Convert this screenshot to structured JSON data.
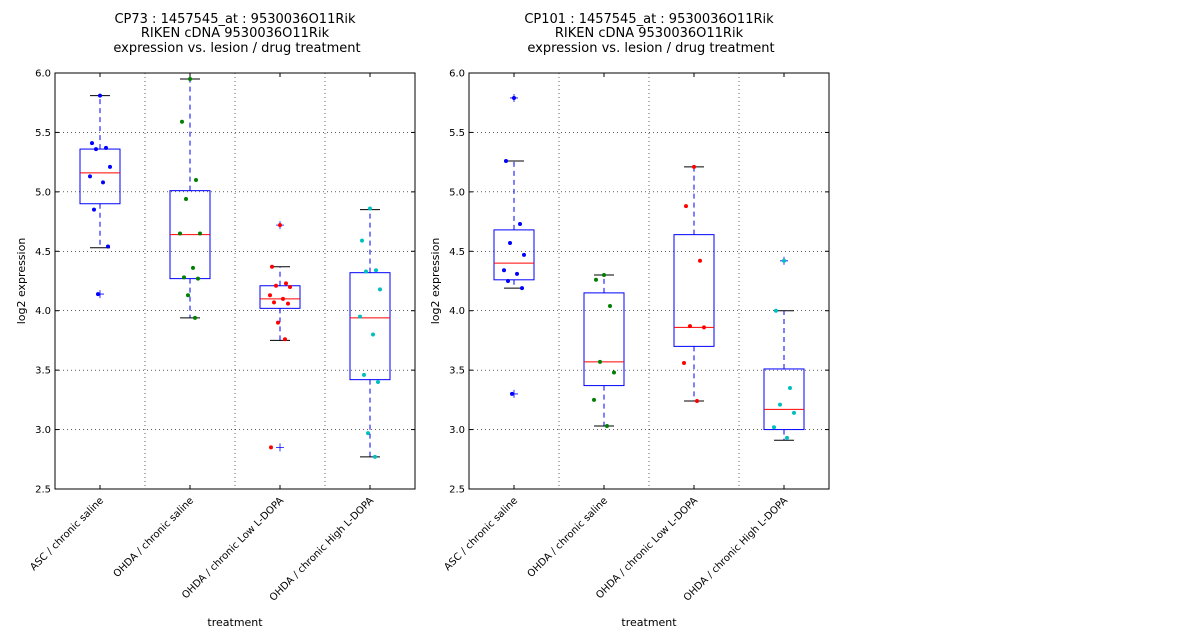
{
  "chart_data": [
    {
      "type": "box",
      "title_lines": [
        "CP73 : 1457545_at : 9530036O11Rik",
        "RIKEN cDNA 9530036O11Rik",
        "expression vs. lesion / drug treatment"
      ],
      "xlabel": "treatment",
      "ylabel": "log2 expression",
      "ylim": [
        2.5,
        6.0
      ],
      "yticks": [
        "2.5",
        "3.0",
        "3.5",
        "4.0",
        "4.5",
        "5.0",
        "5.5",
        "6.0"
      ],
      "grid": true,
      "categories": [
        "ASC / chronic saline",
        "OHDA / chronic saline",
        "OHDA / chronic Low L-DOPA",
        "OHDA / chronic High L-DOPA"
      ],
      "boxes": [
        {
          "q1": 4.9,
          "median": 5.16,
          "q3": 5.36,
          "whisker_low": 4.53,
          "whisker_high": 5.81,
          "outliers": [
            4.14
          ]
        },
        {
          "q1": 4.27,
          "median": 4.64,
          "q3": 5.01,
          "whisker_low": 3.94,
          "whisker_high": 5.95,
          "outliers": []
        },
        {
          "q1": 4.02,
          "median": 4.1,
          "q3": 4.21,
          "whisker_low": 3.75,
          "whisker_high": 4.37,
          "outliers": [
            4.72,
            2.85
          ]
        },
        {
          "q1": 3.42,
          "median": 3.94,
          "q3": 4.32,
          "whisker_low": 2.77,
          "whisker_high": 4.85,
          "outliers": []
        }
      ],
      "points": [
        [
          5.81,
          5.41,
          5.37,
          5.36,
          5.21,
          5.13,
          5.08,
          4.85,
          4.54,
          4.14
        ],
        [
          5.95,
          5.59,
          5.1,
          4.94,
          4.65,
          4.65,
          4.36,
          4.28,
          4.27,
          4.13,
          3.94
        ],
        [
          4.72,
          4.37,
          4.23,
          4.21,
          4.2,
          4.13,
          4.1,
          4.07,
          4.06,
          3.9,
          3.76,
          2.85
        ],
        [
          4.86,
          4.59,
          4.34,
          4.33,
          4.18,
          3.95,
          3.8,
          3.46,
          3.4,
          2.97,
          2.77
        ]
      ],
      "point_colors": [
        "#0000ff",
        "#008000",
        "#ff0000",
        "#00bfbf"
      ]
    },
    {
      "type": "box",
      "title_lines": [
        "CP101 : 1457545_at : 9530036O11Rik",
        "RIKEN cDNA 9530036O11Rik",
        "expression vs. lesion / drug treatment"
      ],
      "xlabel": "treatment",
      "ylabel": "log2 expression",
      "ylim": [
        2.5,
        6.0
      ],
      "yticks": [
        "2.5",
        "3.0",
        "3.5",
        "4.0",
        "4.5",
        "5.0",
        "5.5",
        "6.0"
      ],
      "grid": true,
      "categories": [
        "ASC / chronic saline",
        "OHDA / chronic saline",
        "OHDA / chronic Low L-DOPA",
        "OHDA / chronic High L-DOPA"
      ],
      "boxes": [
        {
          "q1": 4.26,
          "median": 4.4,
          "q3": 4.68,
          "whisker_low": 4.19,
          "whisker_high": 5.26,
          "outliers": [
            5.79,
            3.3
          ]
        },
        {
          "q1": 3.37,
          "median": 3.57,
          "q3": 4.15,
          "whisker_low": 3.03,
          "whisker_high": 4.3,
          "outliers": []
        },
        {
          "q1": 3.7,
          "median": 3.86,
          "q3": 4.64,
          "whisker_low": 3.24,
          "whisker_high": 5.21,
          "outliers": []
        },
        {
          "q1": 3.0,
          "median": 3.17,
          "q3": 3.51,
          "whisker_low": 2.91,
          "whisker_high": 4.0,
          "outliers": [
            4.42
          ]
        }
      ],
      "points": [
        [
          5.79,
          5.26,
          4.73,
          4.57,
          4.47,
          4.34,
          4.31,
          4.25,
          4.19,
          3.3
        ],
        [
          4.3,
          4.26,
          4.04,
          3.57,
          3.48,
          3.25,
          3.03
        ],
        [
          5.21,
          4.88,
          4.42,
          3.87,
          3.86,
          3.56,
          3.24
        ],
        [
          4.42,
          4.0,
          3.35,
          3.21,
          3.14,
          3.02,
          2.93
        ]
      ],
      "point_colors": [
        "#0000ff",
        "#008000",
        "#ff0000",
        "#00bfbf"
      ]
    }
  ]
}
